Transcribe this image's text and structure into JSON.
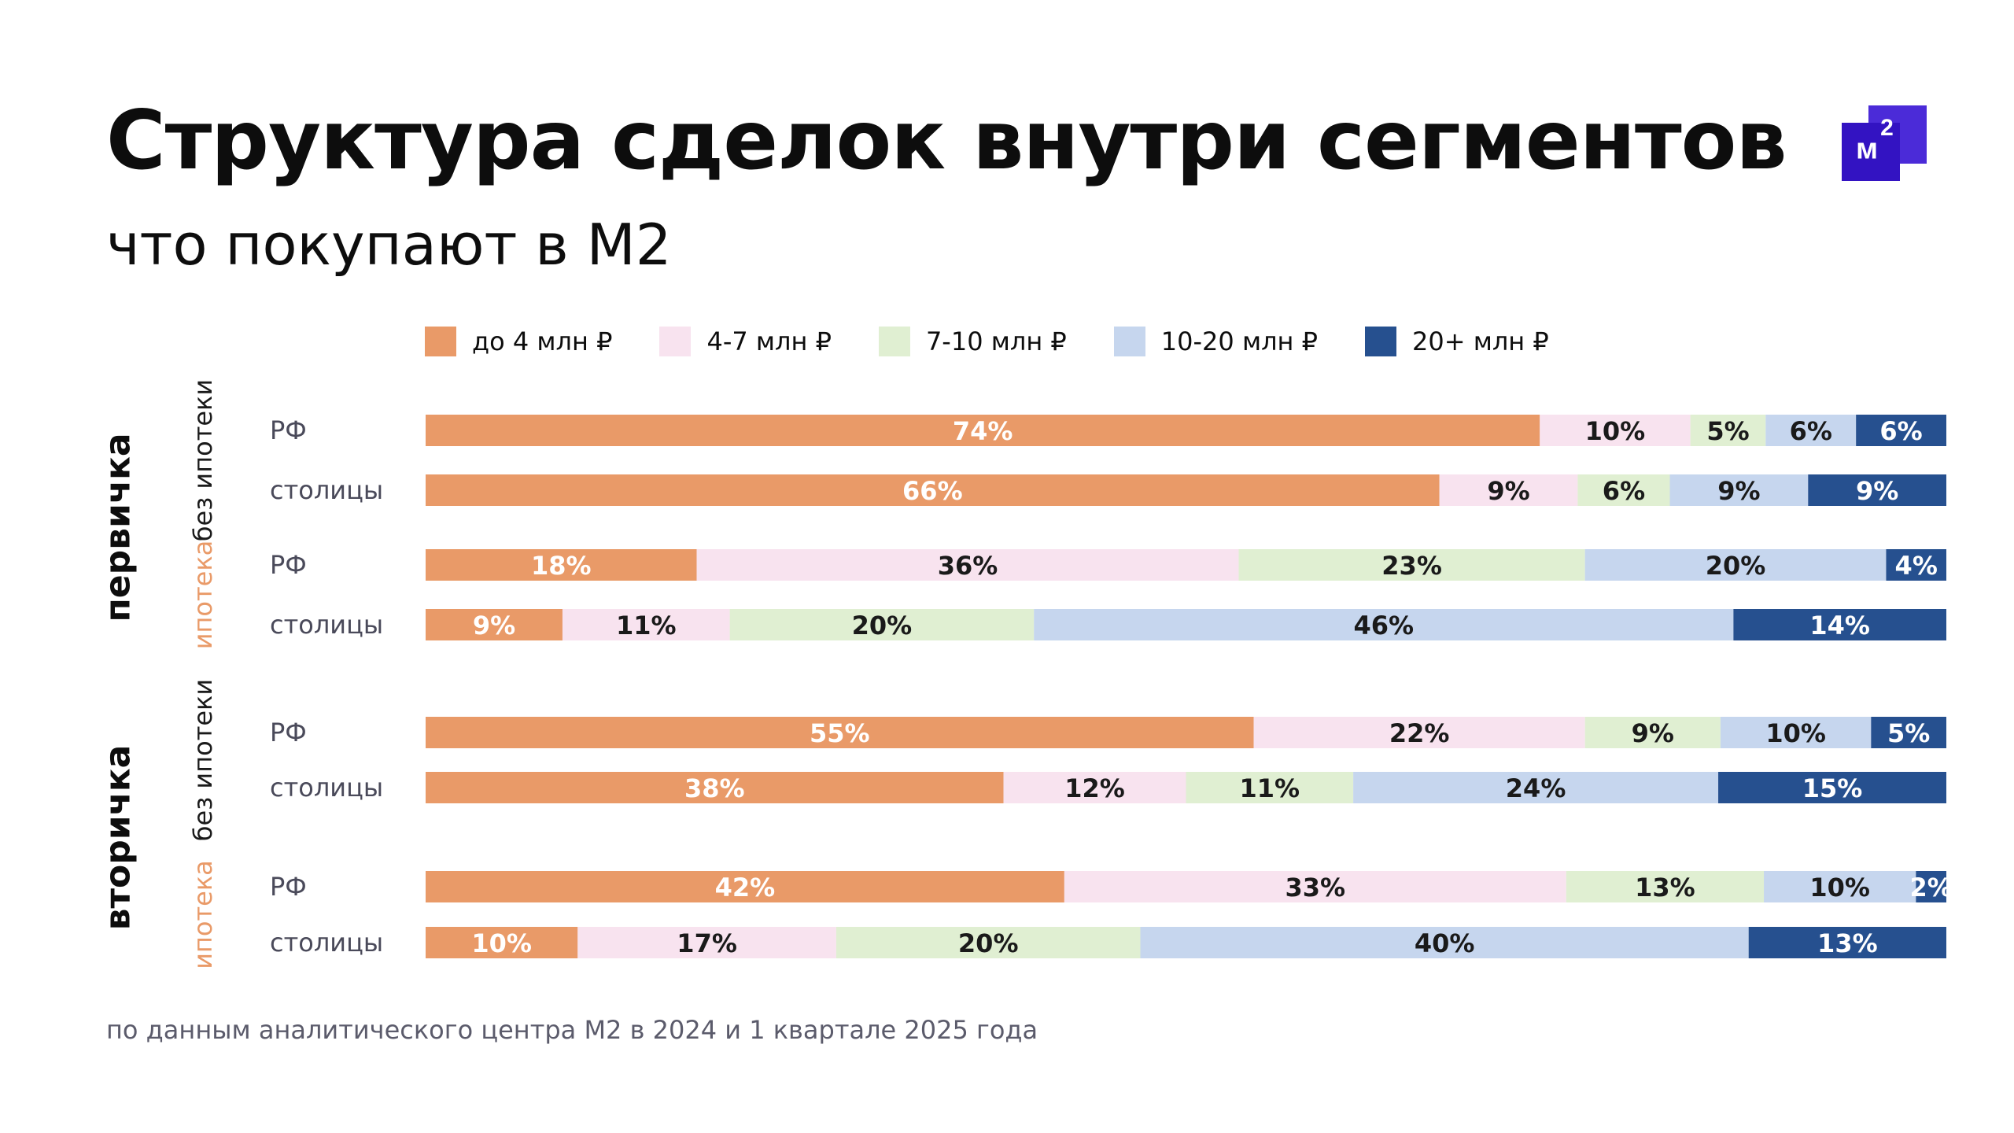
{
  "title": "Структура сделок внутри сегментов",
  "subtitle": "что покупают в М2",
  "logo": {
    "text": "м",
    "sup": "2",
    "color": "#3313c2"
  },
  "footnote": "по данным аналитического центра М2 в 2024 и 1 квартале 2025 года",
  "chart_data": {
    "type": "bar",
    "orientation": "horizontal",
    "stacked": true,
    "normalized_percent": true,
    "legend_position": "top",
    "legend": [
      {
        "name": "до 4 млн ₽",
        "color": "#e99a68"
      },
      {
        "name": "4-7 млн ₽",
        "color": "#f8e3ef"
      },
      {
        "name": "7-10 млн ₽",
        "color": "#e0efd2"
      },
      {
        "name": "10-20 млн ₽",
        "color": "#c6d6ee"
      },
      {
        "name": "20+ млн ₽",
        "color": "#26508f"
      }
    ],
    "groups": [
      {
        "label": "первичка",
        "subgroups": [
          {
            "label": "без ипотеки",
            "label_color": "#1a1a1a",
            "rows": [
              {
                "label": "РФ",
                "values": [
                  74,
                  10,
                  5,
                  6,
                  6
                ],
                "value_labels": [
                  "74%",
                  "10%",
                  "5%",
                  "6%",
                  "6%"
                ]
              },
              {
                "label": "столицы",
                "values": [
                  66,
                  9,
                  6,
                  9,
                  9
                ],
                "value_labels": [
                  "66%",
                  "9%",
                  "6%",
                  "9%",
                  "9%"
                ]
              }
            ]
          },
          {
            "label": "ипотека",
            "label_color": "#e99a68",
            "rows": [
              {
                "label": "РФ",
                "values": [
                  18,
                  36,
                  23,
                  20,
                  4
                ],
                "value_labels": [
                  "18%",
                  "36%",
                  "23%",
                  "20%",
                  "4%"
                ]
              },
              {
                "label": "столицы",
                "values": [
                  9,
                  11,
                  20,
                  46,
                  14
                ],
                "value_labels": [
                  "9%",
                  "11%",
                  "20%",
                  "46%",
                  "14%"
                ]
              }
            ]
          }
        ]
      },
      {
        "label": "вторичка",
        "subgroups": [
          {
            "label": "без ипотеки",
            "label_color": "#1a1a1a",
            "rows": [
              {
                "label": "РФ",
                "values": [
                  55,
                  22,
                  9,
                  10,
                  5
                ],
                "value_labels": [
                  "55%",
                  "22%",
                  "9%",
                  "10%",
                  "5%"
                ]
              },
              {
                "label": "столицы",
                "values": [
                  38,
                  12,
                  11,
                  24,
                  15
                ],
                "value_labels": [
                  "38%",
                  "12%",
                  "11%",
                  "24%",
                  "15%"
                ]
              }
            ]
          },
          {
            "label": "ипотека",
            "label_color": "#e99a68",
            "rows": [
              {
                "label": "РФ",
                "values": [
                  42,
                  33,
                  13,
                  10,
                  2
                ],
                "value_labels": [
                  "42%",
                  "33%",
                  "13%",
                  "10%",
                  "2%"
                ]
              },
              {
                "label": "столицы",
                "values": [
                  10,
                  17,
                  20,
                  40,
                  13
                ],
                "value_labels": [
                  "10%",
                  "17%",
                  "20%",
                  "40%",
                  "13%"
                ]
              }
            ]
          }
        ]
      }
    ],
    "label_colors": [
      "#ffffff",
      "#1a1a1a",
      "#1a1a1a",
      "#1a1a1a",
      "#ffffff"
    ]
  }
}
